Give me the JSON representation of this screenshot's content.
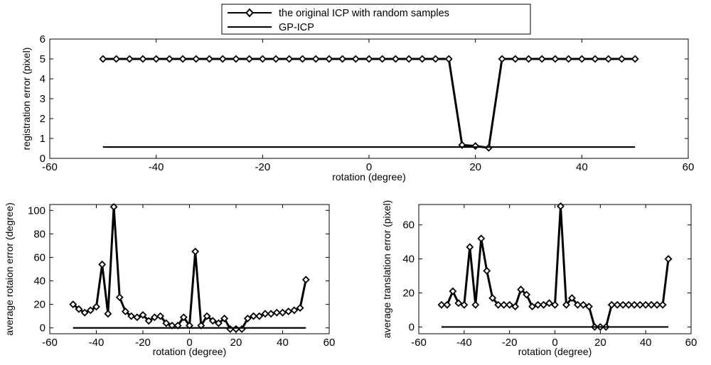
{
  "legend": {
    "entries": [
      "the original ICP with random samples",
      "GP-ICP"
    ]
  },
  "colors": {
    "axes": "#000000",
    "series": "#000000",
    "background": "#ffffff"
  },
  "chart_data": [
    {
      "type": "line",
      "id": "top",
      "title": "",
      "xlabel": "rotation (degree)",
      "ylabel": "registration error (pixel)",
      "xlim": [
        -60,
        60
      ],
      "ylim": [
        0,
        6
      ],
      "xticks": [
        -60,
        -40,
        -20,
        0,
        20,
        40,
        60
      ],
      "yticks": [
        0,
        1,
        2,
        3,
        4,
        5,
        6
      ],
      "grid": false,
      "legend_position": "top-center",
      "x": [
        -50,
        -47.5,
        -45,
        -42.5,
        -40,
        -37.5,
        -35,
        -32.5,
        -30,
        -27.5,
        -25,
        -22.5,
        -20,
        -17.5,
        -15,
        -12.5,
        -10,
        -7.5,
        -5,
        -2.5,
        0,
        2.5,
        5,
        7.5,
        10,
        12.5,
        15,
        17.5,
        20,
        22.5,
        25,
        27.5,
        30,
        32.5,
        35,
        37.5,
        40,
        42.5,
        45,
        47.5,
        50
      ],
      "series": [
        {
          "name": "the original ICP with random samples",
          "marker": "diamond",
          "values": [
            5,
            5,
            5,
            5,
            5,
            5,
            5,
            5,
            5,
            5,
            5,
            5,
            5,
            5,
            5,
            5,
            5,
            5,
            5,
            5,
            5,
            5,
            5,
            5,
            5,
            5,
            5,
            0.67,
            0.62,
            0.53,
            5,
            5,
            5,
            5,
            5,
            5,
            5,
            5,
            5,
            5,
            5
          ]
        },
        {
          "name": "GP-ICP",
          "marker": "none",
          "values": [
            0.57,
            0.57,
            0.57,
            0.57,
            0.57,
            0.57,
            0.57,
            0.57,
            0.57,
            0.57,
            0.57,
            0.57,
            0.57,
            0.57,
            0.57,
            0.57,
            0.57,
            0.57,
            0.57,
            0.57,
            0.57,
            0.57,
            0.57,
            0.57,
            0.57,
            0.57,
            0.57,
            0.57,
            0.57,
            0.57,
            0.57,
            0.57,
            0.57,
            0.57,
            0.57,
            0.57,
            0.57,
            0.57,
            0.57,
            0.57,
            0.57
          ]
        }
      ]
    },
    {
      "type": "line",
      "id": "bottom-left",
      "title": "",
      "xlabel": "rotation (degree)",
      "ylabel": "average rotaion error (degree)",
      "xlim": [
        -60,
        60
      ],
      "ylim": [
        -5,
        105
      ],
      "xticks": [
        -60,
        -40,
        -20,
        0,
        20,
        40,
        60
      ],
      "yticks": [
        0,
        20,
        40,
        60,
        80,
        100
      ],
      "grid": false,
      "x": [
        -50,
        -47.5,
        -45,
        -42.5,
        -40,
        -37.5,
        -35,
        -32.5,
        -30,
        -27.5,
        -25,
        -22.5,
        -20,
        -17.5,
        -15,
        -12.5,
        -10,
        -7.5,
        -5,
        -2.5,
        0,
        2.5,
        5,
        7.5,
        10,
        12.5,
        15,
        17.5,
        20,
        22.5,
        25,
        27.5,
        30,
        32.5,
        35,
        37.5,
        40,
        42.5,
        45,
        47.5,
        50
      ],
      "series": [
        {
          "name": "the original ICP with random samples",
          "marker": "diamond",
          "values": [
            20,
            16,
            13,
            15,
            18,
            54,
            12,
            103,
            26,
            14,
            10,
            9,
            11,
            6,
            9,
            10,
            4,
            2,
            2,
            9,
            2,
            65,
            2,
            10,
            6,
            4,
            8,
            -1,
            -1,
            -1,
            8,
            10,
            10,
            12,
            12,
            13,
            13,
            14,
            15,
            17,
            41
          ]
        },
        {
          "name": "GP-ICP",
          "marker": "none",
          "values": [
            0,
            0,
            0,
            0,
            0,
            0,
            0,
            0,
            0,
            0,
            0,
            0,
            0,
            0,
            0,
            0,
            0,
            0,
            0,
            0,
            0,
            0,
            0,
            0,
            0,
            0,
            0,
            0,
            0,
            0,
            0,
            0,
            0,
            0,
            0,
            0,
            0,
            0,
            0,
            0,
            0
          ]
        }
      ]
    },
    {
      "type": "line",
      "id": "bottom-right",
      "title": "",
      "xlabel": "rotation (degree)",
      "ylabel": "average translation error (pixel)",
      "xlim": [
        -60,
        60
      ],
      "ylim": [
        -4,
        72
      ],
      "xticks": [
        -60,
        -40,
        -20,
        0,
        20,
        40,
        60
      ],
      "yticks": [
        0,
        20,
        40,
        60
      ],
      "grid": false,
      "x": [
        -50,
        -47.5,
        -45,
        -42.5,
        -40,
        -37.5,
        -35,
        -32.5,
        -30,
        -27.5,
        -25,
        -22.5,
        -20,
        -17.5,
        -15,
        -12.5,
        -10,
        -7.5,
        -5,
        -2.5,
        0,
        2.5,
        5,
        7.5,
        10,
        12.5,
        15,
        17.5,
        20,
        22.5,
        25,
        27.5,
        30,
        32.5,
        35,
        37.5,
        40,
        42.5,
        45,
        47.5,
        50
      ],
      "series": [
        {
          "name": "the original ICP with random samples",
          "marker": "diamond",
          "values": [
            13,
            13,
            21,
            14,
            13,
            47,
            13,
            52,
            33,
            17,
            13,
            13,
            13,
            12,
            22,
            19,
            12,
            13,
            13,
            14,
            13,
            71,
            13,
            17,
            13,
            13,
            12,
            0,
            0,
            0,
            13,
            13,
            13,
            13,
            13,
            13,
            13,
            13,
            13,
            13,
            40
          ]
        },
        {
          "name": "GP-ICP",
          "marker": "none",
          "values": [
            0,
            0,
            0,
            0,
            0,
            0,
            0,
            0,
            0,
            0,
            0,
            0,
            0,
            0,
            0,
            0,
            0,
            0,
            0,
            0,
            0,
            0,
            0,
            0,
            0,
            0,
            0,
            0,
            0,
            0,
            0,
            0,
            0,
            0,
            0,
            0,
            0,
            0,
            0,
            0,
            0
          ]
        }
      ]
    }
  ]
}
